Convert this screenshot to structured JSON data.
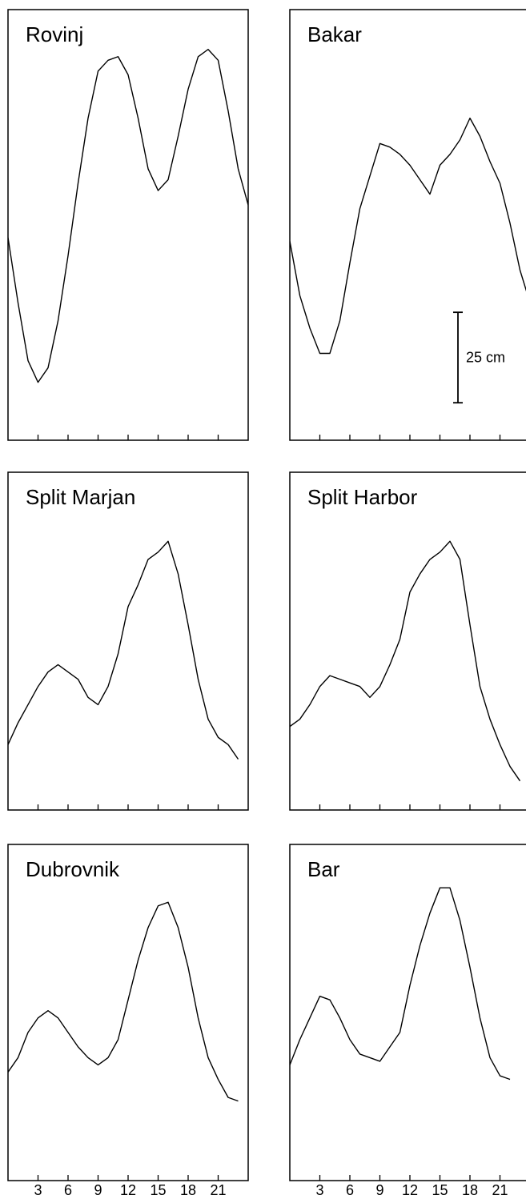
{
  "chart_data": [
    {
      "type": "line",
      "title": "Rovinj",
      "color": "#000000",
      "tick_labels": false,
      "x": [
        0,
        1,
        2,
        3,
        4,
        5,
        6,
        7,
        8,
        9,
        10,
        11,
        12,
        13,
        14,
        15,
        16,
        17,
        18,
        19,
        20,
        21,
        22,
        23,
        24
      ],
      "values": [
        56,
        38,
        22,
        16,
        20,
        33,
        51,
        71,
        89,
        102,
        105,
        106,
        101,
        89,
        75,
        69,
        72,
        84,
        97,
        106,
        108,
        105,
        91,
        75,
        65
      ],
      "xlim": [
        0,
        24
      ],
      "ylim": [
        0,
        119
      ],
      "xticks": [
        3,
        6,
        9,
        12,
        15,
        18,
        21
      ]
    },
    {
      "type": "line",
      "title": "Bakar",
      "color": "#000000",
      "tick_labels": false,
      "x": [
        0,
        1,
        2,
        3,
        4,
        5,
        6,
        7,
        8,
        9,
        10,
        11,
        12,
        13,
        14,
        15,
        16,
        17,
        18,
        19,
        20,
        21,
        22,
        23,
        24
      ],
      "values": [
        55,
        40,
        31,
        24,
        24,
        33,
        49,
        64,
        73,
        82,
        81,
        79,
        76,
        72,
        68,
        76,
        79,
        83,
        89,
        84,
        77,
        71,
        60,
        47,
        38
      ],
      "xlim": [
        0,
        24
      ],
      "ylim": [
        0,
        119
      ],
      "xticks": [
        3,
        6,
        9,
        12,
        15,
        18,
        21
      ],
      "scale_bar": {
        "value": 25,
        "label": "25 cm"
      }
    },
    {
      "type": "line",
      "title": "Split Marjan",
      "color": "#000000",
      "tick_labels": false,
      "x": [
        0,
        1,
        2,
        3,
        4,
        5,
        6,
        7,
        8,
        9,
        10,
        11,
        12,
        13,
        14,
        15,
        16,
        17,
        18,
        19,
        20,
        21,
        22,
        23
      ],
      "values": [
        18,
        24,
        29,
        34,
        38,
        40,
        38,
        36,
        31,
        29,
        34,
        43,
        56,
        62,
        69,
        71,
        74,
        65,
        51,
        36,
        25,
        20,
        18,
        14
      ],
      "xlim": [
        0,
        24
      ],
      "ylim": [
        0,
        93
      ],
      "xticks": [
        3,
        6,
        9,
        12,
        15,
        18,
        21
      ]
    },
    {
      "type": "line",
      "title": "Split Harbor",
      "color": "#000000",
      "tick_labels": false,
      "x": [
        0,
        1,
        2,
        3,
        4,
        5,
        6,
        7,
        8,
        9,
        10,
        11,
        12,
        13,
        14,
        15,
        16,
        17,
        18,
        19,
        20,
        21,
        22,
        23
      ],
      "values": [
        23,
        25,
        29,
        34,
        37,
        36,
        35,
        34,
        31,
        34,
        40,
        47,
        60,
        65,
        69,
        71,
        74,
        69,
        51,
        34,
        25,
        18,
        12,
        8
      ],
      "xlim": [
        0,
        24
      ],
      "ylim": [
        0,
        93
      ],
      "xticks": [
        3,
        6,
        9,
        12,
        15,
        18,
        21
      ]
    },
    {
      "type": "line",
      "title": "Dubrovnik",
      "color": "#000000",
      "tick_labels": true,
      "x": [
        0,
        1,
        2,
        3,
        4,
        5,
        6,
        7,
        8,
        9,
        10,
        11,
        12,
        13,
        14,
        15,
        16,
        17,
        18,
        19,
        20,
        21,
        22,
        23
      ],
      "values": [
        30,
        34,
        41,
        45,
        47,
        45,
        41,
        37,
        34,
        32,
        34,
        39,
        50,
        61,
        70,
        76,
        77,
        70,
        59,
        45,
        34,
        28,
        23,
        22
      ],
      "xlim": [
        0,
        24
      ],
      "ylim": [
        0,
        93
      ],
      "xticks": [
        3,
        6,
        9,
        12,
        15,
        18,
        21
      ]
    },
    {
      "type": "line",
      "title": "Bar",
      "color": "#000000",
      "tick_labels": true,
      "x": [
        0,
        1,
        2,
        3,
        4,
        5,
        6,
        7,
        8,
        9,
        10,
        11,
        12,
        13,
        14,
        15,
        16,
        17,
        18,
        19,
        20,
        21,
        22
      ],
      "values": [
        32,
        39,
        45,
        51,
        50,
        45,
        39,
        35,
        34,
        33,
        37,
        41,
        54,
        65,
        74,
        81,
        81,
        72,
        59,
        45,
        34,
        29,
        28
      ],
      "xlim": [
        0,
        24
      ],
      "ylim": [
        0,
        93
      ],
      "xticks": [
        3,
        6,
        9,
        12,
        15,
        18,
        21
      ]
    }
  ]
}
